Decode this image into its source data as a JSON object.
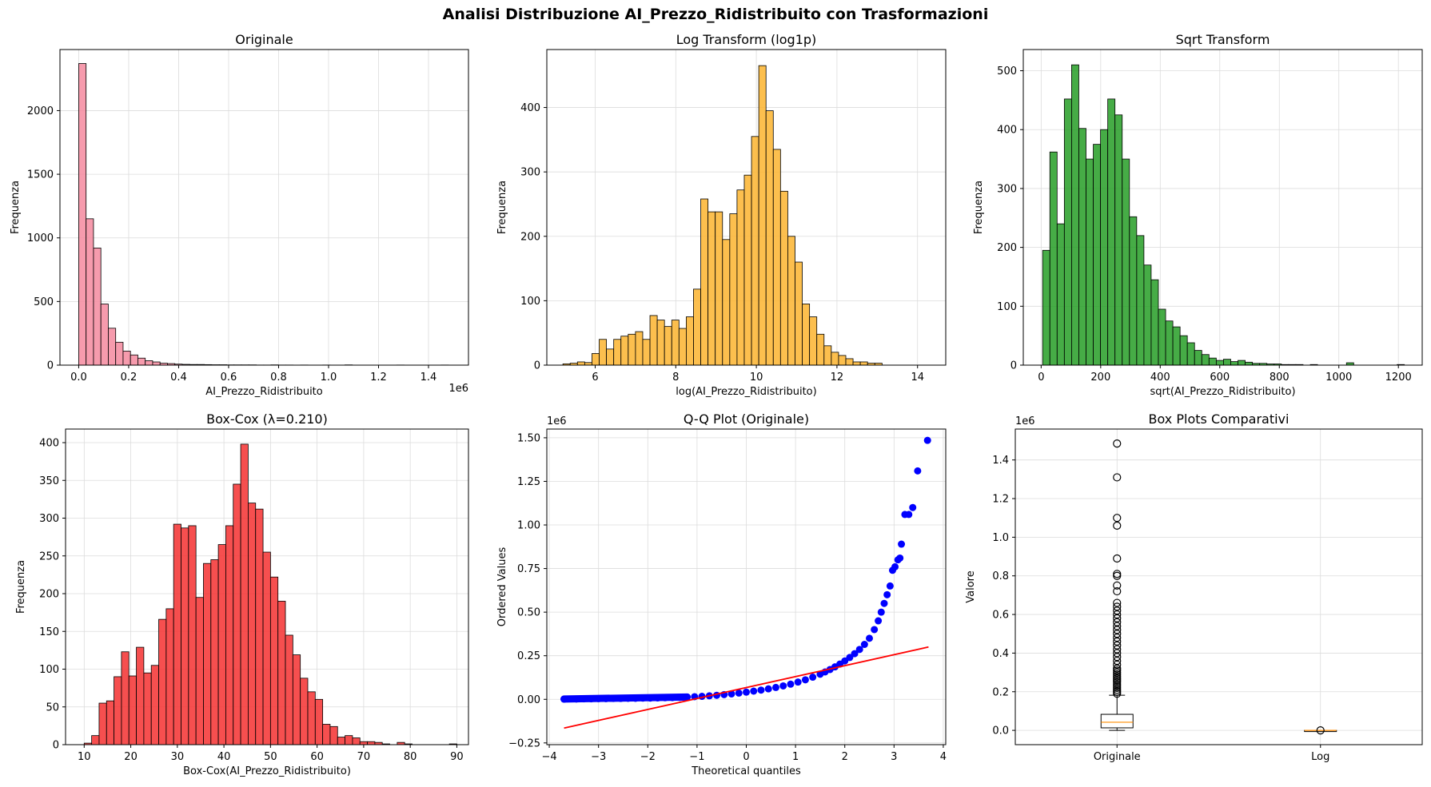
{
  "figure": {
    "suptitle": "Analisi Distribuzione AI_Prezzo_Ridistribuito con Trasformazioni"
  },
  "chart_data": [
    {
      "id": "hist-original",
      "type": "bar",
      "title": "Originale",
      "xlabel": "AI_Prezzo_Ridistribuito",
      "ylabel": "Frequenza",
      "offset_text": "1e6",
      "bar_color": "#f4899f",
      "xlim": [
        -0.075,
        1.56
      ],
      "ylim": [
        0,
        2480
      ],
      "xticks": [
        0.0,
        0.2,
        0.4,
        0.6,
        0.8,
        1.0,
        1.2,
        1.4
      ],
      "xtick_labels": [
        "0.0",
        "0.2",
        "0.4",
        "0.6",
        "0.8",
        "1.0",
        "1.2",
        "1.4"
      ],
      "yticks": [
        0,
        500,
        1000,
        1500,
        2000
      ],
      "ytick_labels": [
        "0",
        "500",
        "1000",
        "1500",
        "2000"
      ],
      "bin_start": 0.0,
      "bin_width": 0.0296,
      "values": [
        2370,
        1150,
        920,
        480,
        290,
        180,
        110,
        80,
        55,
        35,
        25,
        15,
        12,
        8,
        6,
        5,
        5,
        4,
        3,
        3,
        2,
        2,
        2,
        2,
        1,
        1,
        2,
        1,
        1,
        0,
        1,
        0,
        0,
        1,
        0,
        0,
        2,
        0,
        0,
        0,
        0,
        0,
        0,
        1,
        0,
        0,
        0,
        0,
        0,
        1
      ]
    },
    {
      "id": "hist-log",
      "type": "bar",
      "title": "Log Transform (log1p)",
      "xlabel": "log(AI_Prezzo_Ridistribuito)",
      "ylabel": "Frequenza",
      "bar_color": "#fbb42f",
      "xlim": [
        4.8,
        14.7
      ],
      "ylim": [
        0,
        490
      ],
      "xticks": [
        6,
        8,
        10,
        12,
        14
      ],
      "xtick_labels": [
        "6",
        "8",
        "10",
        "12",
        "14"
      ],
      "yticks": [
        0,
        100,
        200,
        300,
        400
      ],
      "ytick_labels": [
        "0",
        "100",
        "200",
        "300",
        "400"
      ],
      "bin_start": 5.2,
      "bin_width": 0.18,
      "values": [
        2,
        3,
        5,
        4,
        18,
        40,
        25,
        40,
        45,
        48,
        52,
        40,
        77,
        70,
        60,
        70,
        57,
        75,
        118,
        258,
        238,
        238,
        195,
        235,
        272,
        295,
        355,
        465,
        395,
        335,
        270,
        200,
        160,
        95,
        75,
        48,
        30,
        20,
        15,
        10,
        5,
        5,
        3,
        3
      ]
    },
    {
      "id": "hist-sqrt",
      "type": "bar",
      "title": "Sqrt Transform",
      "xlabel": "sqrt(AI_Prezzo_Ridistribuito)",
      "ylabel": "Frequenza",
      "bar_color": "#269e26",
      "xlim": [
        -60,
        1280
      ],
      "ylim": [
        0,
        536
      ],
      "xticks": [
        0,
        200,
        400,
        600,
        800,
        1000,
        1200
      ],
      "xtick_labels": [
        "0",
        "200",
        "400",
        "600",
        "800",
        "1000",
        "1200"
      ],
      "yticks": [
        0,
        100,
        200,
        300,
        400,
        500
      ],
      "ytick_labels": [
        "0",
        "100",
        "200",
        "300",
        "400",
        "500"
      ],
      "bin_start": 5,
      "bin_width": 24.3,
      "values": [
        195,
        362,
        240,
        452,
        510,
        402,
        350,
        375,
        400,
        452,
        425,
        350,
        252,
        220,
        170,
        145,
        95,
        75,
        65,
        50,
        38,
        25,
        18,
        12,
        8,
        10,
        6,
        8,
        5,
        3,
        3,
        2,
        2,
        1,
        1,
        1,
        0,
        1,
        0,
        0,
        0,
        0,
        4,
        0,
        0,
        0,
        0,
        0,
        0,
        1
      ]
    },
    {
      "id": "hist-boxcox",
      "type": "bar",
      "title": "Box-Cox (λ=0.210)",
      "xlabel": "Box-Cox(AI_Prezzo_Ridistribuito)",
      "ylabel": "Frequenza",
      "bar_color": "#f53030",
      "xlim": [
        6.0,
        92.5
      ],
      "ylim": [
        0,
        418
      ],
      "xticks": [
        10,
        20,
        30,
        40,
        50,
        60,
        70,
        80,
        90
      ],
      "xtick_labels": [
        "10",
        "20",
        "30",
        "40",
        "50",
        "60",
        "70",
        "80",
        "90"
      ],
      "yticks": [
        0,
        50,
        100,
        150,
        200,
        250,
        300,
        350,
        400
      ],
      "ytick_labels": [
        "0",
        "50",
        "100",
        "150",
        "200",
        "250",
        "300",
        "350",
        "400"
      ],
      "bin_start": 10,
      "bin_width": 1.6,
      "values": [
        2,
        12,
        55,
        58,
        90,
        123,
        91,
        129,
        95,
        105,
        166,
        180,
        292,
        287,
        290,
        195,
        240,
        245,
        265,
        290,
        345,
        398,
        320,
        312,
        255,
        222,
        190,
        145,
        119,
        88,
        70,
        60,
        27,
        24,
        10,
        12,
        9,
        4,
        4,
        3,
        1,
        0,
        3,
        1,
        0,
        0,
        0,
        0,
        0,
        1
      ]
    },
    {
      "id": "qq-plot",
      "type": "scatter",
      "title": "Q-Q Plot (Originale)",
      "xlabel": "Theoretical quantiles",
      "ylabel": "Ordered Values",
      "offset_text": "1e6",
      "point_color": "#0000ff",
      "line_color": "#ff0000",
      "xlim": [
        -4.05,
        4.05
      ],
      "ylim": [
        -0.26,
        1.55
      ],
      "xticks": [
        -4,
        -3,
        -2,
        -1,
        0,
        1,
        2,
        3,
        4
      ],
      "xtick_labels": [
        "−4",
        "−3",
        "−2",
        "−1",
        "0",
        "1",
        "2",
        "3",
        "4"
      ],
      "yticks": [
        -0.25,
        0.0,
        0.25,
        0.5,
        0.75,
        1.0,
        1.25,
        1.5
      ],
      "ytick_labels": [
        "−0.25",
        "0.00",
        "0.25",
        "0.50",
        "0.75",
        "1.00",
        "1.25",
        "1.50"
      ],
      "fit_line": {
        "x": [
          -3.7,
          3.7
        ],
        "y": [
          -0.165,
          0.3
        ]
      },
      "points": [
        [
          -3.7,
          0.001
        ],
        [
          -3.45,
          0.002
        ],
        [
          -3.3,
          0.003
        ],
        [
          -3.15,
          0.003
        ],
        [
          -3.0,
          0.004
        ],
        [
          -2.85,
          0.004
        ],
        [
          -2.7,
          0.005
        ],
        [
          -2.55,
          0.005
        ],
        [
          -2.4,
          0.006
        ],
        [
          -2.25,
          0.006
        ],
        [
          -2.1,
          0.007
        ],
        [
          -1.95,
          0.007
        ],
        [
          -1.8,
          0.008
        ],
        [
          -1.65,
          0.009
        ],
        [
          -1.5,
          0.01
        ],
        [
          -1.35,
          0.011
        ],
        [
          -1.2,
          0.013
        ],
        [
          -1.05,
          0.015
        ],
        [
          -0.9,
          0.017
        ],
        [
          -0.75,
          0.02
        ],
        [
          -0.6,
          0.023
        ],
        [
          -0.45,
          0.027
        ],
        [
          -0.3,
          0.031
        ],
        [
          -0.15,
          0.036
        ],
        [
          0.0,
          0.041
        ],
        [
          0.15,
          0.047
        ],
        [
          0.3,
          0.053
        ],
        [
          0.45,
          0.06
        ],
        [
          0.6,
          0.068
        ],
        [
          0.75,
          0.077
        ],
        [
          0.9,
          0.087
        ],
        [
          1.05,
          0.099
        ],
        [
          1.2,
          0.112
        ],
        [
          1.35,
          0.127
        ],
        [
          1.5,
          0.144
        ],
        [
          1.6,
          0.157
        ],
        [
          1.7,
          0.171
        ],
        [
          1.8,
          0.186
        ],
        [
          1.9,
          0.202
        ],
        [
          2.0,
          0.22
        ],
        [
          2.1,
          0.24
        ],
        [
          2.2,
          0.262
        ],
        [
          2.3,
          0.286
        ],
        [
          2.4,
          0.315
        ],
        [
          2.5,
          0.35
        ],
        [
          2.6,
          0.4
        ],
        [
          2.68,
          0.45
        ],
        [
          2.74,
          0.5
        ],
        [
          2.8,
          0.55
        ],
        [
          2.86,
          0.6
        ],
        [
          2.92,
          0.65
        ],
        [
          2.97,
          0.74
        ],
        [
          3.02,
          0.76
        ],
        [
          3.08,
          0.8
        ],
        [
          3.12,
          0.81
        ],
        [
          3.15,
          0.89
        ],
        [
          3.22,
          1.06
        ],
        [
          3.3,
          1.06
        ],
        [
          3.38,
          1.1
        ],
        [
          3.48,
          1.31
        ],
        [
          3.68,
          1.485
        ]
      ]
    },
    {
      "id": "box-plots",
      "type": "box",
      "title": "Box Plots Comparativi",
      "ylabel": "Valore",
      "offset_text": "1e6",
      "median_color": "#ff8c00",
      "xlim": [
        0.5,
        2.5
      ],
      "ylim": [
        -0.074,
        1.56
      ],
      "categories": [
        "Originale",
        "Log"
      ],
      "yticks": [
        0.0,
        0.2,
        0.4,
        0.6,
        0.8,
        1.0,
        1.2,
        1.4
      ],
      "ytick_labels": [
        "0.0",
        "0.2",
        "0.4",
        "0.6",
        "0.8",
        "1.0",
        "1.2",
        "1.4"
      ],
      "boxes": [
        {
          "name": "Originale",
          "whisker_low": 0.0,
          "q1": 0.013,
          "median": 0.042,
          "q3": 0.083,
          "whisker_high": 0.182,
          "fliers": [
            0.19,
            0.2,
            0.21,
            0.22,
            0.23,
            0.24,
            0.25,
            0.26,
            0.27,
            0.28,
            0.29,
            0.3,
            0.31,
            0.32,
            0.34,
            0.36,
            0.38,
            0.4,
            0.42,
            0.44,
            0.46,
            0.48,
            0.5,
            0.52,
            0.54,
            0.56,
            0.58,
            0.6,
            0.62,
            0.64,
            0.66,
            0.72,
            0.75,
            0.8,
            0.81,
            0.89,
            1.06,
            1.1,
            1.31,
            1.485
          ]
        },
        {
          "name": "Log",
          "whisker_low": 0.0,
          "q1": 0.0,
          "median": 0.0,
          "q3": 0.0,
          "whisker_high": 0.0,
          "fliers": [
            0.0
          ]
        }
      ]
    }
  ]
}
